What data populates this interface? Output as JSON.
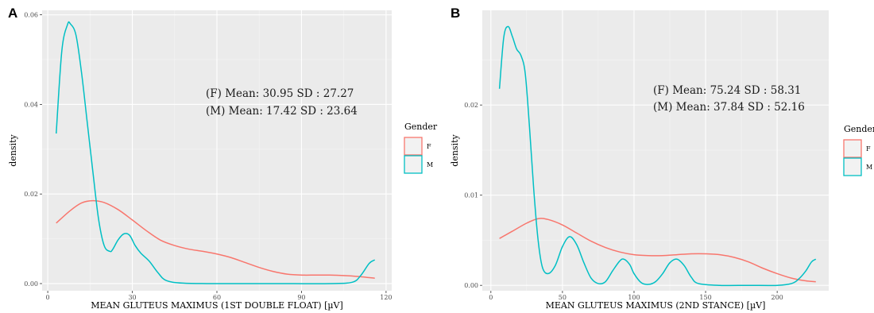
{
  "chart_data": [
    {
      "type": "line",
      "panel_label": "A",
      "xlabel": "MEAN GLUTEUS MAXIMUS (1ST DOUBLE FLOAT) [µV]",
      "ylabel": "density",
      "xlim": [
        -2,
        122
      ],
      "ylim": [
        -0.0016,
        0.061
      ],
      "x_ticks": [
        0,
        30,
        60,
        90,
        120
      ],
      "x_tick_labels": [
        "0",
        "30",
        "60",
        "90",
        "120"
      ],
      "y_ticks": [
        0.0,
        0.02,
        0.04,
        0.06
      ],
      "y_tick_labels": [
        "0.00",
        "0.02",
        "0.04",
        "0.06"
      ],
      "grid": true,
      "annotations": [
        "(F) Mean: 30.95   SD : 27.27",
        "(M) Mean: 17.42   SD : 23.64"
      ],
      "legend": {
        "title": "Gender",
        "position": "right",
        "labels": [
          "F",
          "M"
        ]
      },
      "series": [
        {
          "name": "F",
          "color": "#F8766D",
          "x": [
            3,
            8,
            12,
            16,
            20,
            25,
            30,
            35,
            40,
            45,
            50,
            55,
            60,
            65,
            70,
            75,
            80,
            85,
            90,
            95,
            100,
            105,
            110,
            116
          ],
          "y": [
            0.0135,
            0.0163,
            0.018,
            0.0185,
            0.0181,
            0.0165,
            0.0142,
            0.0118,
            0.0097,
            0.0085,
            0.0077,
            0.0072,
            0.0066,
            0.0058,
            0.0047,
            0.0036,
            0.0027,
            0.0021,
            0.0019,
            0.0019,
            0.0019,
            0.0018,
            0.0016,
            0.0012
          ]
        },
        {
          "name": "M",
          "color": "#00BFC4",
          "x": [
            3,
            5,
            7,
            8,
            10,
            12,
            14,
            16,
            18,
            20,
            22,
            23,
            25,
            27,
            29,
            31,
            33,
            36,
            39,
            42,
            48,
            60,
            80,
            100,
            108,
            111,
            114,
            116
          ],
          "y": [
            0.0335,
            0.052,
            0.0578,
            0.058,
            0.0555,
            0.047,
            0.036,
            0.025,
            0.0145,
            0.0085,
            0.0072,
            0.0076,
            0.0098,
            0.0111,
            0.0108,
            0.0085,
            0.0068,
            0.005,
            0.0025,
            0.0007,
            0.0001,
            0.0,
            0.0,
            0.0,
            0.0003,
            0.0018,
            0.0045,
            0.0053
          ]
        }
      ]
    },
    {
      "type": "line",
      "panel_label": "B",
      "xlabel": "MEAN GLUTEUS MAXIMUS (2ND STANCE) [µV]",
      "ylabel": "density",
      "xlim": [
        -6,
        236
      ],
      "ylim": [
        -0.0006,
        0.0305
      ],
      "x_ticks": [
        0,
        50,
        100,
        150,
        200
      ],
      "x_tick_labels": [
        "0",
        "50",
        "100",
        "150",
        "200"
      ],
      "y_ticks": [
        0.0,
        0.01,
        0.02
      ],
      "y_tick_labels": [
        "0.00",
        "0.01",
        "0.02"
      ],
      "grid": true,
      "annotations": [
        "(F) Mean: 75.24   SD : 58.31",
        "(M) Mean: 37.84   SD : 52.16"
      ],
      "legend": {
        "title": "Gender",
        "position": "right",
        "labels": [
          "F",
          "M"
        ]
      },
      "series": [
        {
          "name": "F",
          "color": "#F8766D",
          "x": [
            6,
            15,
            25,
            33,
            40,
            50,
            60,
            70,
            80,
            90,
            100,
            110,
            120,
            130,
            140,
            150,
            160,
            170,
            180,
            190,
            200,
            210,
            220,
            227
          ],
          "y": [
            0.0052,
            0.006,
            0.0069,
            0.0074,
            0.0073,
            0.0067,
            0.0058,
            0.0049,
            0.0042,
            0.0037,
            0.0034,
            0.0033,
            0.0033,
            0.0034,
            0.0035,
            0.0035,
            0.0034,
            0.0031,
            0.0026,
            0.0019,
            0.0013,
            0.0008,
            0.0005,
            0.0004
          ]
        },
        {
          "name": "M",
          "color": "#00BFC4",
          "x": [
            6,
            9,
            12,
            15,
            18,
            21,
            24,
            27,
            30,
            33,
            36,
            40,
            45,
            50,
            55,
            60,
            65,
            70,
            75,
            80,
            85,
            90,
            93,
            97,
            100,
            105,
            110,
            115,
            120,
            125,
            130,
            135,
            140,
            145,
            160,
            180,
            200,
            210,
            215,
            220,
            224,
            227
          ],
          "y": [
            0.0218,
            0.0275,
            0.0287,
            0.0276,
            0.0262,
            0.0255,
            0.0235,
            0.0175,
            0.0105,
            0.005,
            0.002,
            0.0013,
            0.0022,
            0.0043,
            0.0054,
            0.0045,
            0.0025,
            0.0008,
            0.0002,
            0.0004,
            0.0016,
            0.0027,
            0.0029,
            0.0023,
            0.0013,
            0.0003,
            0.0001,
            0.0004,
            0.0013,
            0.0025,
            0.0029,
            0.0022,
            0.0009,
            0.0002,
            0.0,
            0.0,
            0.0,
            0.0002,
            0.0007,
            0.0016,
            0.0026,
            0.0029
          ]
        }
      ]
    }
  ]
}
